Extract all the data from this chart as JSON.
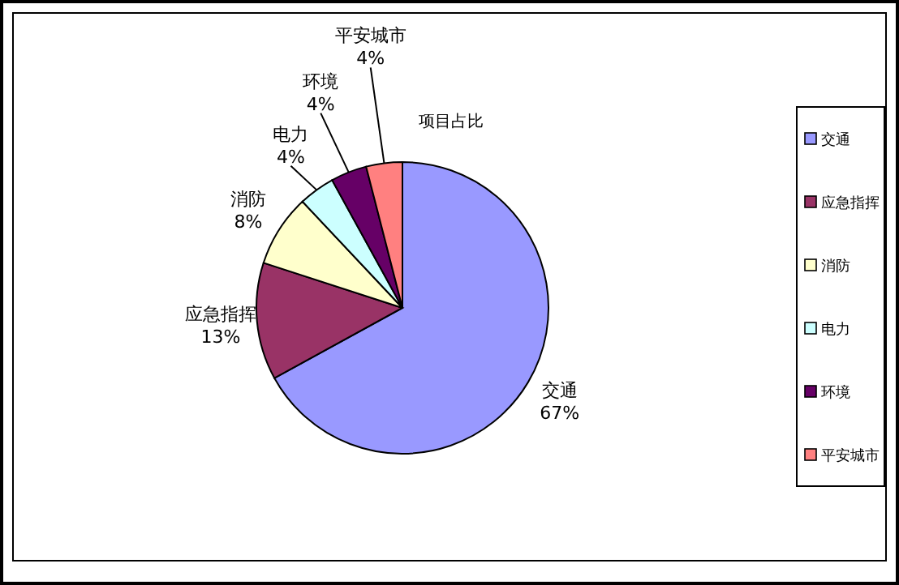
{
  "chart_data": {
    "type": "pie",
    "title": "项目占比",
    "categories": [
      "交通",
      "应急指挥",
      "消防",
      "电力",
      "环境",
      "平安城市"
    ],
    "values": [
      67,
      13,
      8,
      4,
      4,
      4
    ],
    "value_labels": [
      "67%",
      "13%",
      "8%",
      "4%",
      "4%",
      "4%"
    ],
    "colors": [
      "#9999ff",
      "#993366",
      "#ffffcc",
      "#ccffff",
      "#660066",
      "#ff8080"
    ],
    "legend": "right"
  }
}
